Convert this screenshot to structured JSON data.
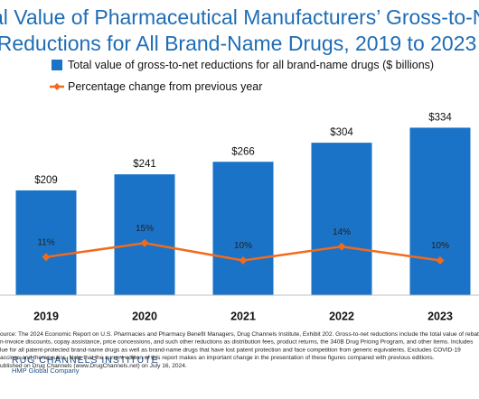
{
  "chart_data": {
    "type": "bar",
    "title": [
      "otal Value of Pharmaceutical Manufacturers’ Gross-to-Ne",
      "Reductions for All Brand-Name Drugs, 2019 to 2023"
    ],
    "categories": [
      "2019",
      "2020",
      "2021",
      "2022",
      "2023"
    ],
    "ylim": [
      0,
      360
    ],
    "y2lim": [
      0,
      52
    ],
    "series": [
      {
        "name": "Total value of gross-to-net reductions for all brand-name drugs ($ billions)",
        "type": "bar",
        "color": "#1a73c6",
        "values": [
          209,
          241,
          266,
          304,
          334
        ],
        "value_labels": [
          "$209",
          "$241",
          "$266",
          "$304",
          "$334"
        ]
      },
      {
        "name": "Percentage change from previous year",
        "type": "line",
        "axis": "y2",
        "color": "#f26b1d",
        "values": [
          11,
          15,
          10,
          14,
          10
        ],
        "value_labels": [
          "11%",
          "15%",
          "10%",
          "14%",
          "10%"
        ]
      }
    ],
    "footnote": [
      "ource: The 2024 Economic Report on U.S. Pharmacies and Pharmacy Benefit Managers, Drug Channels Institute, Exhibit 202. Gross-to-net reductions include the total value of rebat",
      "n-invoice discounts, copay assistance, price concessions, and such other reductions as distribution fees, product returns, the 340B Drug Pricing Program, and other items. Includes",
      "lue for all patent-protected brand-name drugs as well as brand-name drugs that have lost patent protection and face competition from generic equivalents. Excludes COVID-19",
      "accines and therapeutics. Note that the current edition of this report makes an important change in the presentation of these figures compared with previous editions.",
      "ublished on Drug Channels (www.DrugChannels.net) on July 16, 2024."
    ],
    "logo": [
      "RUG CHANNELS INSTITUTE",
      "HMP Global Company"
    ]
  }
}
